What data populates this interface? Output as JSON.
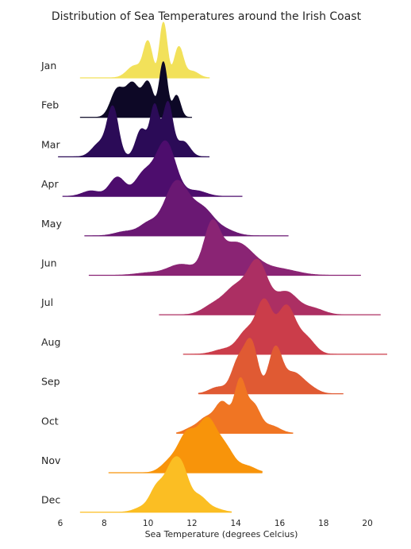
{
  "chart_data": {
    "type": "ridgeline",
    "title": "Distribution of Sea Temperatures around the Irish Coast",
    "xlabel": "Sea Temperature (degrees Celcius)",
    "ylabel": "",
    "xlim": [
      6,
      21
    ],
    "xticks": [
      "6",
      "8",
      "10",
      "12",
      "14",
      "16",
      "18",
      "20"
    ],
    "grid": false,
    "series": [
      {
        "name": "Jan",
        "color": "#f2e15a",
        "range": [
          6.9,
          12.8
        ],
        "peaks": [
          [
            10.7,
            0.17,
            1.0
          ],
          [
            10.0,
            0.2,
            0.62
          ],
          [
            11.4,
            0.2,
            0.55
          ],
          [
            9.4,
            0.35,
            0.22
          ],
          [
            12.0,
            0.3,
            0.12
          ]
        ]
      },
      {
        "name": "Feb",
        "color": "#0d0826",
        "range": [
          6.9,
          12.0
        ],
        "peaks": [
          [
            10.7,
            0.18,
            1.0
          ],
          [
            10.0,
            0.25,
            0.62
          ],
          [
            9.3,
            0.3,
            0.6
          ],
          [
            8.6,
            0.3,
            0.5
          ],
          [
            11.3,
            0.18,
            0.4
          ]
        ]
      },
      {
        "name": "Mar",
        "color": "#2b0b57",
        "range": [
          5.9,
          12.8
        ],
        "peaks": [
          [
            8.4,
            0.25,
            0.78
          ],
          [
            10.3,
            0.2,
            0.82
          ],
          [
            10.9,
            0.22,
            0.88
          ],
          [
            9.7,
            0.25,
            0.45
          ],
          [
            7.8,
            0.35,
            0.22
          ],
          [
            11.6,
            0.3,
            0.25
          ]
        ]
      },
      {
        "name": "Apr",
        "color": "#4d0d6d",
        "range": [
          6.1,
          14.3
        ],
        "peaks": [
          [
            10.8,
            0.45,
            1.0
          ],
          [
            8.6,
            0.35,
            0.35
          ],
          [
            9.8,
            0.4,
            0.4
          ],
          [
            7.4,
            0.4,
            0.1
          ],
          [
            12.2,
            0.45,
            0.1
          ]
        ]
      },
      {
        "name": "May",
        "color": "#6a1873",
        "range": [
          7.1,
          16.4
        ],
        "peaks": [
          [
            11.3,
            0.55,
            1.0
          ],
          [
            12.5,
            0.5,
            0.45
          ],
          [
            10.0,
            0.4,
            0.2
          ],
          [
            9.0,
            0.5,
            0.08
          ],
          [
            13.5,
            0.5,
            0.1
          ]
        ]
      },
      {
        "name": "Jun",
        "color": "#8a2474",
        "range": [
          7.3,
          19.7
        ],
        "peaks": [
          [
            12.9,
            0.35,
            0.7
          ],
          [
            14.0,
            0.8,
            0.55
          ],
          [
            11.5,
            0.6,
            0.18
          ],
          [
            16.0,
            0.8,
            0.1
          ],
          [
            10.0,
            0.6,
            0.04
          ]
        ]
      },
      {
        "name": "Jul",
        "color": "#ac2f63",
        "range": [
          10.5,
          20.6
        ],
        "peaks": [
          [
            15.0,
            0.45,
            0.8
          ],
          [
            14.0,
            0.5,
            0.4
          ],
          [
            16.3,
            0.5,
            0.35
          ],
          [
            13.0,
            0.5,
            0.15
          ],
          [
            17.5,
            0.5,
            0.1
          ]
        ]
      },
      {
        "name": "Aug",
        "color": "#cb3d4a",
        "range": [
          11.6,
          20.9
        ],
        "peaks": [
          [
            15.3,
            0.35,
            0.8
          ],
          [
            16.3,
            0.4,
            0.75
          ],
          [
            14.5,
            0.4,
            0.35
          ],
          [
            17.2,
            0.4,
            0.25
          ],
          [
            13.5,
            0.5,
            0.08
          ]
        ]
      },
      {
        "name": "Sep",
        "color": "#e05a33",
        "range": [
          12.3,
          18.9
        ],
        "peaks": [
          [
            14.7,
            0.3,
            0.92
          ],
          [
            15.8,
            0.3,
            0.82
          ],
          [
            14.1,
            0.3,
            0.55
          ],
          [
            16.6,
            0.4,
            0.35
          ],
          [
            13.2,
            0.4,
            0.12
          ],
          [
            17.3,
            0.4,
            0.12
          ]
        ]
      },
      {
        "name": "Oct",
        "color": "#f07523",
        "range": [
          11.3,
          16.6
        ],
        "peaks": [
          [
            14.2,
            0.25,
            1.0
          ],
          [
            13.4,
            0.35,
            0.62
          ],
          [
            14.8,
            0.3,
            0.55
          ],
          [
            12.6,
            0.35,
            0.28
          ],
          [
            15.6,
            0.4,
            0.15
          ],
          [
            11.9,
            0.3,
            0.08
          ]
        ]
      },
      {
        "name": "Nov",
        "color": "#f8940a",
        "range": [
          8.2,
          15.2
        ],
        "peaks": [
          [
            12.7,
            0.4,
            0.92
          ],
          [
            11.8,
            0.4,
            0.7
          ],
          [
            13.5,
            0.4,
            0.45
          ],
          [
            14.5,
            0.4,
            0.12
          ],
          [
            11.0,
            0.4,
            0.2
          ]
        ]
      },
      {
        "name": "Dec",
        "color": "#fbbe23",
        "range": [
          6.9,
          13.8
        ],
        "peaks": [
          [
            11.1,
            0.35,
            1.0
          ],
          [
            11.6,
            0.3,
            0.7
          ],
          [
            10.4,
            0.3,
            0.5
          ],
          [
            12.3,
            0.35,
            0.35
          ],
          [
            13.0,
            0.4,
            0.08
          ],
          [
            9.8,
            0.4,
            0.12
          ]
        ]
      }
    ]
  }
}
